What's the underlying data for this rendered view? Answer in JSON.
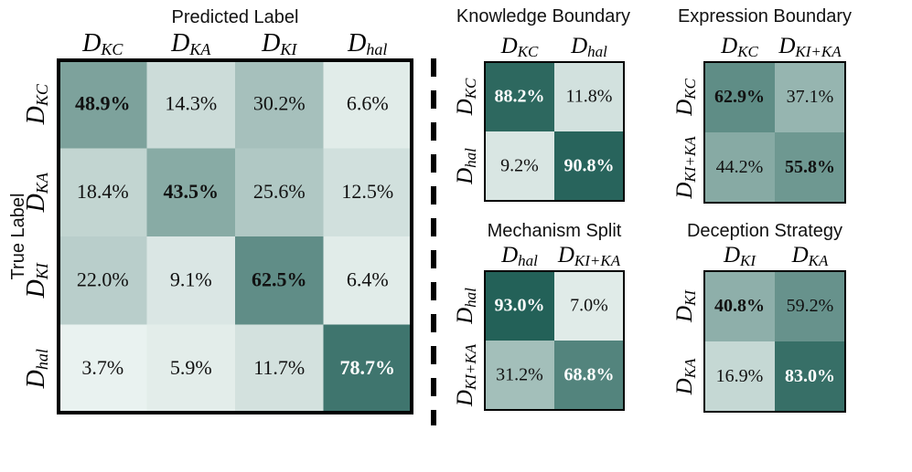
{
  "chart_data": [
    {
      "type": "heatmap",
      "xlabel": "Predicted Label",
      "ylabel": "True Label",
      "x_categories": [
        {
          "main": "D",
          "sub": "KC"
        },
        {
          "main": "D",
          "sub": "KA"
        },
        {
          "main": "D",
          "sub": "KI"
        },
        {
          "main": "D",
          "sub": "hal"
        }
      ],
      "y_categories": [
        {
          "main": "D",
          "sub": "KC"
        },
        {
          "main": "D",
          "sub": "KA"
        },
        {
          "main": "D",
          "sub": "KI"
        },
        {
          "main": "D",
          "sub": "hal"
        }
      ],
      "values": [
        [
          48.9,
          14.3,
          30.2,
          6.6
        ],
        [
          18.4,
          43.5,
          25.6,
          12.5
        ],
        [
          22.0,
          9.1,
          62.5,
          6.4
        ],
        [
          3.7,
          5.9,
          11.7,
          78.7
        ]
      ],
      "labels": [
        [
          "48.9%",
          "14.3%",
          "30.2%",
          "6.6%"
        ],
        [
          "18.4%",
          "43.5%",
          "25.6%",
          "12.5%"
        ],
        [
          "22.0%",
          "9.1%",
          "62.5%",
          "6.4%"
        ],
        [
          "3.7%",
          "5.9%",
          "11.7%",
          "78.7%"
        ]
      ]
    },
    {
      "type": "heatmap",
      "title": "Knowledge Boundary",
      "x_categories": [
        {
          "main": "D",
          "sub": "KC"
        },
        {
          "main": "D",
          "sub": "hal"
        }
      ],
      "y_categories": [
        {
          "main": "D",
          "sub": "KC"
        },
        {
          "main": "D",
          "sub": "hal"
        }
      ],
      "values": [
        [
          88.2,
          11.8
        ],
        [
          9.2,
          90.8
        ]
      ],
      "labels": [
        [
          "88.2%",
          "11.8%"
        ],
        [
          "9.2%",
          "90.8%"
        ]
      ]
    },
    {
      "type": "heatmap",
      "title": "Expression Boundary",
      "x_categories": [
        {
          "main": "D",
          "sub": "KC"
        },
        {
          "main": "D",
          "sub": "KI+KA"
        }
      ],
      "y_categories": [
        {
          "main": "D",
          "sub": "KC"
        },
        {
          "main": "D",
          "sub": "KI+KA"
        }
      ],
      "values": [
        [
          62.9,
          37.1
        ],
        [
          44.2,
          55.8
        ]
      ],
      "labels": [
        [
          "62.9%",
          "37.1%"
        ],
        [
          "44.2%",
          "55.8%"
        ]
      ]
    },
    {
      "type": "heatmap",
      "title": "Mechanism Split",
      "x_categories": [
        {
          "main": "D",
          "sub": "hal"
        },
        {
          "main": "D",
          "sub": "KI+KA"
        }
      ],
      "y_categories": [
        {
          "main": "D",
          "sub": "hal"
        },
        {
          "main": "D",
          "sub": "KI+KA"
        }
      ],
      "values": [
        [
          93.0,
          7.0
        ],
        [
          31.2,
          68.8
        ]
      ],
      "labels": [
        [
          "93.0%",
          "7.0%"
        ],
        [
          "31.2%",
          "68.8%"
        ]
      ]
    },
    {
      "type": "heatmap",
      "title": "Deception Strategy",
      "x_categories": [
        {
          "main": "D",
          "sub": "KI"
        },
        {
          "main": "D",
          "sub": "KA"
        }
      ],
      "y_categories": [
        {
          "main": "D",
          "sub": "KI"
        },
        {
          "main": "D",
          "sub": "KA"
        }
      ],
      "values": [
        [
          40.8,
          59.2
        ],
        [
          16.9,
          83.0
        ]
      ],
      "labels": [
        [
          "40.8%",
          "59.2%"
        ],
        [
          "16.9%",
          "83.0%"
        ]
      ]
    }
  ],
  "colors": {
    "low": "#f7fcfa",
    "high": "#16574e",
    "text_dark": "#111111",
    "text_light": "#ffffff",
    "border": "#000000"
  }
}
